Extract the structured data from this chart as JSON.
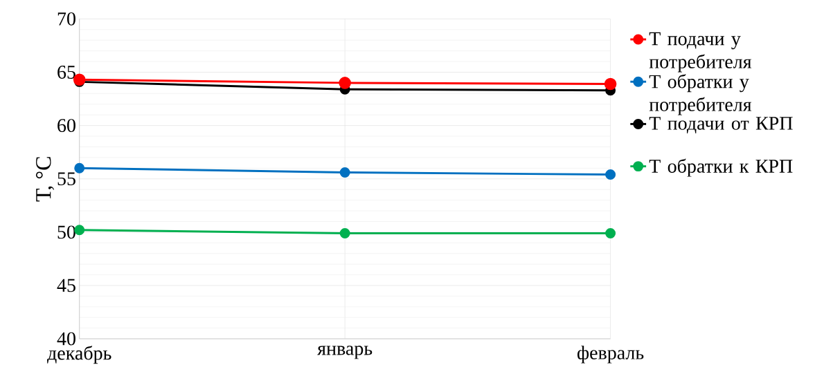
{
  "chart_data": {
    "type": "line",
    "ylabel": "Т, °C",
    "categories": [
      "декабрь",
      "январь",
      "февраль"
    ],
    "series": [
      {
        "name": "Т подачи у потребителя",
        "color": "#ff0000",
        "values": [
          64.3,
          64.0,
          63.9
        ]
      },
      {
        "name": "Т обратки у потребителя",
        "color": "#0070c0",
        "values": [
          56.0,
          55.6,
          55.4
        ]
      },
      {
        "name": "Т подачи от КРП",
        "color": "#000000",
        "values": [
          64.1,
          63.4,
          63.3
        ]
      },
      {
        "name": "Т обратки к КРП",
        "color": "#00b050",
        "values": [
          50.2,
          49.9,
          49.9
        ]
      }
    ],
    "ylim": [
      40,
      70
    ],
    "yticks": [
      40,
      45,
      50,
      55,
      60,
      65,
      70
    ],
    "grid": true,
    "legend": "right",
    "marker": "circle",
    "line_style": "solid"
  }
}
